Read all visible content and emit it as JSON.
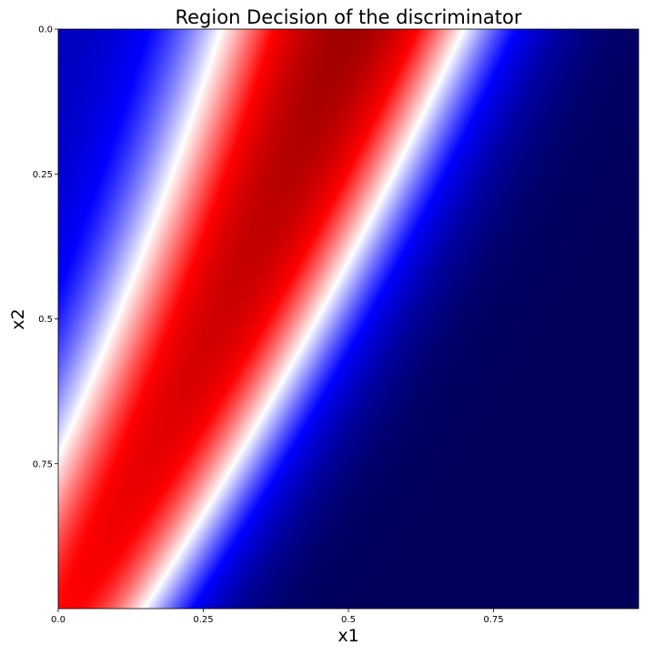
{
  "chart_data": {
    "type": "heatmap",
    "title": "Region Decision of the discriminator",
    "xlabel": "x1",
    "ylabel": "x2",
    "xlim": [
      0.0,
      1.0
    ],
    "ylim": [
      0.0,
      1.0
    ],
    "y_axis_inverted": true,
    "xticks": [
      {
        "value": 0.0,
        "label": "0.0"
      },
      {
        "value": 0.25,
        "label": "0.25"
      },
      {
        "value": 0.5,
        "label": "0.5"
      },
      {
        "value": 0.75,
        "label": "0.75"
      }
    ],
    "yticks": [
      {
        "value": 0.0,
        "label": "0.0"
      },
      {
        "value": 0.25,
        "label": "0.25"
      },
      {
        "value": 0.5,
        "label": "0.5"
      },
      {
        "value": 0.75,
        "label": "0.75"
      }
    ],
    "colormap": "seismic",
    "colormap_stops": [
      "#00004c",
      "#0000ff",
      "#ffffff",
      "#ff0000",
      "#7f0000"
    ],
    "colorbar": false,
    "grid": false,
    "regions": [
      {
        "label": "high (red band)",
        "centerline_x1_at_x2": [
          [
            0.0,
            0.5
          ],
          [
            0.25,
            0.4
          ],
          [
            0.5,
            0.28
          ],
          [
            0.75,
            0.16
          ],
          [
            1.0,
            0.02
          ]
        ]
      },
      {
        "label": "decision boundary (white, left)",
        "centerline_x1_at_x2": [
          [
            0.0,
            0.33
          ],
          [
            0.25,
            0.22
          ],
          [
            0.5,
            0.1
          ],
          [
            0.62,
            0.0
          ]
        ]
      },
      {
        "label": "decision boundary (white, right)",
        "centerline_x1_at_x2": [
          [
            0.0,
            0.72
          ],
          [
            0.25,
            0.58
          ],
          [
            0.5,
            0.47
          ],
          [
            0.75,
            0.33
          ],
          [
            1.0,
            0.18
          ]
        ]
      }
    ]
  }
}
